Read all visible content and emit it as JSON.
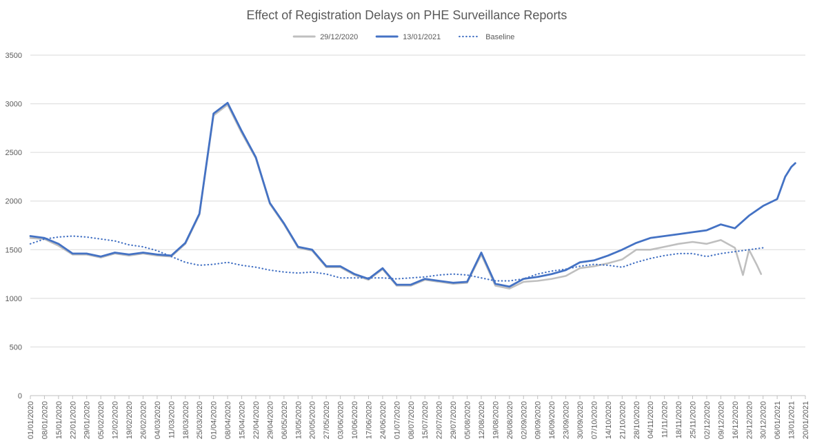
{
  "chart_data": {
    "type": "line",
    "title": "Effect of Registration Delays on PHE Surveillance Reports",
    "xlabel": "",
    "ylabel": "",
    "ylim": [
      0,
      3500
    ],
    "y_ticks": [
      0,
      500,
      1000,
      1500,
      2000,
      2500,
      3000,
      3500
    ],
    "x_tick_labels": [
      "01/01/2020",
      "08/01/2020",
      "15/01/2020",
      "22/01/2020",
      "29/01/2020",
      "05/02/2020",
      "12/02/2020",
      "19/02/2020",
      "26/02/2020",
      "04/03/2020",
      "11/03/2020",
      "18/03/2020",
      "25/03/2020",
      "01/04/2020",
      "08/04/2020",
      "15/04/2020",
      "22/04/2020",
      "29/04/2020",
      "06/05/2020",
      "13/05/2020",
      "20/05/2020",
      "27/05/2020",
      "03/06/2020",
      "10/06/2020",
      "17/06/2020",
      "24/06/2020",
      "01/07/2020",
      "08/07/2020",
      "15/07/2020",
      "22/07/2020",
      "29/07/2020",
      "05/08/2020",
      "12/08/2020",
      "19/08/2020",
      "26/08/2020",
      "02/09/2020",
      "09/09/2020",
      "16/09/2020",
      "23/09/2020",
      "30/09/2020",
      "07/10/2020",
      "14/10/2020",
      "21/10/2020",
      "28/10/2020",
      "04/11/2020",
      "11/11/2020",
      "18/11/2020",
      "25/11/2020",
      "02/12/2020",
      "09/12/2020",
      "16/12/2020",
      "23/12/2020",
      "30/12/2020",
      "06/01/2021",
      "13/01/2021",
      "20/01/2021"
    ],
    "grid": true,
    "legend_position": "top",
    "series": [
      {
        "name": "29/12/2020",
        "color": "#bfbfbf",
        "style": "solid",
        "x": [
          "01/01/2020",
          "08/01/2020",
          "15/01/2020",
          "22/01/2020",
          "29/01/2020",
          "05/02/2020",
          "12/02/2020",
          "19/02/2020",
          "26/02/2020",
          "04/03/2020",
          "11/03/2020",
          "18/03/2020",
          "25/03/2020",
          "01/04/2020",
          "08/04/2020",
          "15/04/2020",
          "22/04/2020",
          "29/04/2020",
          "06/05/2020",
          "13/05/2020",
          "20/05/2020",
          "27/05/2020",
          "03/06/2020",
          "10/06/2020",
          "17/06/2020",
          "24/06/2020",
          "01/07/2020",
          "08/07/2020",
          "15/07/2020",
          "22/07/2020",
          "29/07/2020",
          "05/08/2020",
          "12/08/2020",
          "19/08/2020",
          "26/08/2020",
          "02/09/2020",
          "09/09/2020",
          "16/09/2020",
          "23/09/2020",
          "30/09/2020",
          "07/10/2020",
          "14/10/2020",
          "21/10/2020",
          "28/10/2020",
          "04/11/2020",
          "11/11/2020",
          "18/11/2020",
          "25/11/2020",
          "02/12/2020",
          "09/12/2020",
          "16/12/2020",
          "20/12/2020",
          "23/12/2020",
          "27/12/2020",
          "29/12/2020"
        ],
        "values": [
          1620,
          1610,
          1540,
          1450,
          1450,
          1420,
          1460,
          1440,
          1460,
          1440,
          1430,
          1560,
          1860,
          2880,
          2990,
          2700,
          2440,
          1970,
          1760,
          1520,
          1490,
          1320,
          1320,
          1240,
          1190,
          1300,
          1130,
          1130,
          1190,
          1170,
          1150,
          1160,
          1450,
          1130,
          1100,
          1170,
          1180,
          1200,
          1230,
          1310,
          1330,
          1360,
          1400,
          1500,
          1500,
          1530,
          1560,
          1580,
          1560,
          1600,
          1520,
          1240,
          1500,
          1340,
          1250
        ]
      },
      {
        "name": "13/01/2021",
        "color": "#4472c4",
        "style": "solid",
        "x": [
          "01/01/2020",
          "08/01/2020",
          "15/01/2020",
          "22/01/2020",
          "29/01/2020",
          "05/02/2020",
          "12/02/2020",
          "19/02/2020",
          "26/02/2020",
          "04/03/2020",
          "11/03/2020",
          "18/03/2020",
          "25/03/2020",
          "01/04/2020",
          "08/04/2020",
          "15/04/2020",
          "22/04/2020",
          "29/04/2020",
          "06/05/2020",
          "13/05/2020",
          "20/05/2020",
          "27/05/2020",
          "03/06/2020",
          "10/06/2020",
          "17/06/2020",
          "24/06/2020",
          "01/07/2020",
          "08/07/2020",
          "15/07/2020",
          "22/07/2020",
          "29/07/2020",
          "05/08/2020",
          "12/08/2020",
          "19/08/2020",
          "26/08/2020",
          "02/09/2020",
          "09/09/2020",
          "16/09/2020",
          "23/09/2020",
          "30/09/2020",
          "07/10/2020",
          "14/10/2020",
          "21/10/2020",
          "28/10/2020",
          "04/11/2020",
          "11/11/2020",
          "18/11/2020",
          "25/11/2020",
          "02/12/2020",
          "09/12/2020",
          "16/12/2020",
          "23/12/2020",
          "30/12/2020",
          "06/01/2021",
          "10/01/2021",
          "13/01/2021",
          "15/01/2021"
        ],
        "values": [
          1640,
          1620,
          1560,
          1460,
          1460,
          1430,
          1470,
          1450,
          1470,
          1450,
          1440,
          1570,
          1870,
          2900,
          3010,
          2720,
          2450,
          1980,
          1770,
          1530,
          1500,
          1330,
          1330,
          1250,
          1200,
          1310,
          1140,
          1140,
          1200,
          1180,
          1160,
          1170,
          1470,
          1150,
          1120,
          1200,
          1220,
          1250,
          1290,
          1370,
          1390,
          1440,
          1500,
          1570,
          1620,
          1640,
          1660,
          1680,
          1700,
          1760,
          1720,
          1850,
          1950,
          2020,
          2250,
          2350,
          2390
        ]
      },
      {
        "name": "Baseline",
        "color": "#4472c4",
        "style": "dotted",
        "x": [
          "01/01/2020",
          "08/01/2020",
          "15/01/2020",
          "22/01/2020",
          "29/01/2020",
          "05/02/2020",
          "12/02/2020",
          "19/02/2020",
          "26/02/2020",
          "04/03/2020",
          "11/03/2020",
          "18/03/2020",
          "25/03/2020",
          "01/04/2020",
          "08/04/2020",
          "15/04/2020",
          "22/04/2020",
          "29/04/2020",
          "06/05/2020",
          "13/05/2020",
          "20/05/2020",
          "27/05/2020",
          "03/06/2020",
          "10/06/2020",
          "17/06/2020",
          "24/06/2020",
          "01/07/2020",
          "08/07/2020",
          "15/07/2020",
          "22/07/2020",
          "29/07/2020",
          "05/08/2020",
          "12/08/2020",
          "19/08/2020",
          "26/08/2020",
          "02/09/2020",
          "09/09/2020",
          "16/09/2020",
          "23/09/2020",
          "30/09/2020",
          "07/10/2020",
          "14/10/2020",
          "21/10/2020",
          "28/10/2020",
          "04/11/2020",
          "11/11/2020",
          "18/11/2020",
          "25/11/2020",
          "02/12/2020",
          "09/12/2020",
          "16/12/2020",
          "23/12/2020",
          "30/12/2020"
        ],
        "values": [
          1560,
          1610,
          1630,
          1640,
          1630,
          1610,
          1590,
          1550,
          1530,
          1490,
          1430,
          1370,
          1340,
          1350,
          1370,
          1340,
          1320,
          1290,
          1270,
          1260,
          1270,
          1250,
          1210,
          1210,
          1210,
          1210,
          1200,
          1210,
          1220,
          1240,
          1250,
          1240,
          1210,
          1180,
          1180,
          1200,
          1250,
          1280,
          1300,
          1330,
          1350,
          1340,
          1320,
          1370,
          1410,
          1440,
          1460,
          1460,
          1430,
          1460,
          1480,
          1500,
          1520
        ]
      }
    ]
  }
}
